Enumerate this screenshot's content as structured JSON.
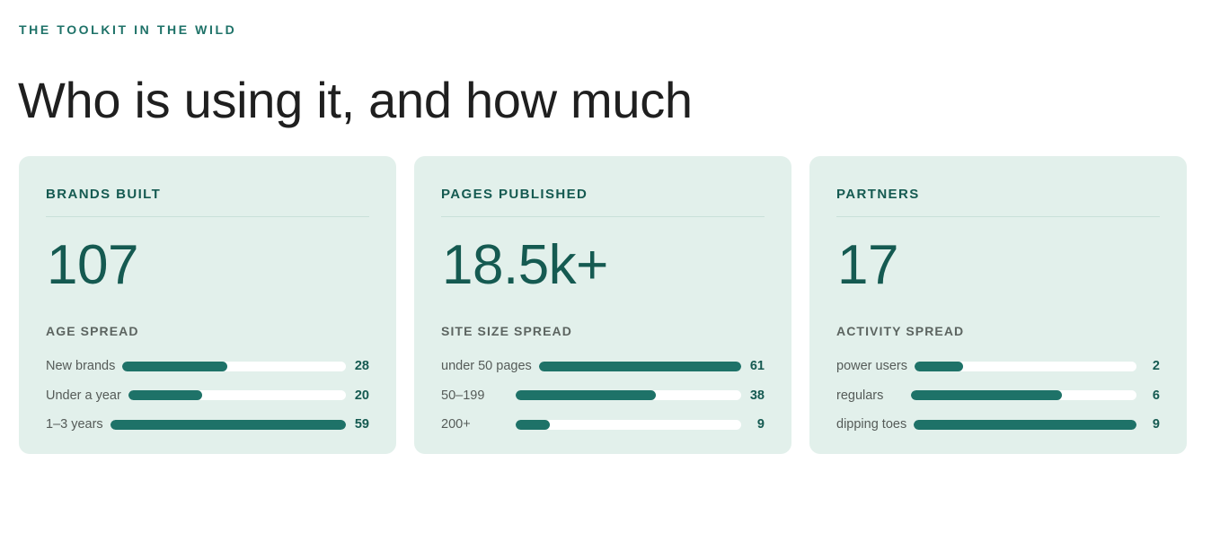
{
  "header": {
    "eyebrow": "THE TOOLKIT IN THE WILD",
    "title": "Who is using it, and how much"
  },
  "colors": {
    "accent": "#1e7268",
    "card_bg": "#e2f0eb",
    "value_text": "#155a51"
  },
  "cards": [
    {
      "label": "BRANDS BUILT",
      "value": "107",
      "spread_label": "AGE SPREAD",
      "rows": [
        {
          "label": "New brands",
          "value": "28",
          "fraction": 0.47
        },
        {
          "label": "Under a year",
          "value": "20",
          "fraction": 0.34
        },
        {
          "label": "1–3 years",
          "value": "59",
          "fraction": 1.0
        }
      ]
    },
    {
      "label": "PAGES PUBLISHED",
      "value": "18.5k+",
      "spread_label": "SITE SIZE SPREAD",
      "rows": [
        {
          "label": "under 50 pages",
          "value": "61",
          "fraction": 1.0
        },
        {
          "label": "50–199",
          "value": "38",
          "fraction": 0.62
        },
        {
          "label": "200+",
          "value": "9",
          "fraction": 0.15
        }
      ]
    },
    {
      "label": "PARTNERS",
      "value": "17",
      "spread_label": "ACTIVITY SPREAD",
      "rows": [
        {
          "label": "power users",
          "value": "2",
          "fraction": 0.22
        },
        {
          "label": "regulars",
          "value": "6",
          "fraction": 0.67
        },
        {
          "label": "dipping toes",
          "value": "9",
          "fraction": 1.0
        }
      ]
    }
  ]
}
